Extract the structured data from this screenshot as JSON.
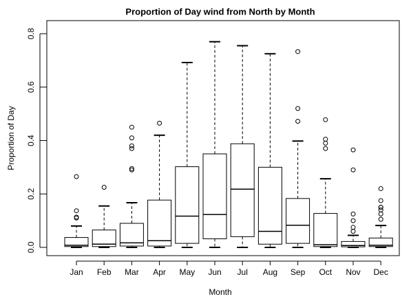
{
  "chart_data": {
    "type": "box",
    "title": "Proportion of Day wind from North by Month",
    "xlabel": "Month",
    "ylabel": "Proportion of Day",
    "categories": [
      "Jan",
      "Feb",
      "Mar",
      "Apr",
      "May",
      "Jun",
      "Jul",
      "Aug",
      "Sep",
      "Oct",
      "Nov",
      "Dec"
    ],
    "boxes": [
      {
        "low": 0,
        "q1": 0.003,
        "median": 0.008,
        "q3": 0.037,
        "high": 0.08,
        "outliers": [
          0.11,
          0.113,
          0.137,
          0.265
        ]
      },
      {
        "low": 0,
        "q1": 0.003,
        "median": 0.012,
        "q3": 0.065,
        "high": 0.155,
        "outliers": [
          0.225
        ]
      },
      {
        "low": 0,
        "q1": 0.005,
        "median": 0.017,
        "q3": 0.09,
        "high": 0.167,
        "outliers": [
          0.29,
          0.295,
          0.37,
          0.38,
          0.41,
          0.45
        ]
      },
      {
        "low": 0,
        "q1": 0.005,
        "median": 0.025,
        "q3": 0.177,
        "high": 0.42,
        "outliers": [
          0.465
        ]
      },
      {
        "low": 0,
        "q1": 0.015,
        "median": 0.117,
        "q3": 0.302,
        "high": 0.692,
        "outliers": []
      },
      {
        "low": 0,
        "q1": 0.032,
        "median": 0.123,
        "q3": 0.35,
        "high": 0.77,
        "outliers": []
      },
      {
        "low": 0,
        "q1": 0.04,
        "median": 0.218,
        "q3": 0.388,
        "high": 0.755,
        "outliers": []
      },
      {
        "low": 0,
        "q1": 0.012,
        "median": 0.06,
        "q3": 0.3,
        "high": 0.725,
        "outliers": []
      },
      {
        "low": 0,
        "q1": 0.015,
        "median": 0.083,
        "q3": 0.183,
        "high": 0.398,
        "outliers": [
          0.472,
          0.52,
          0.733
        ]
      },
      {
        "low": 0,
        "q1": 0.003,
        "median": 0.01,
        "q3": 0.127,
        "high": 0.257,
        "outliers": [
          0.37,
          0.39,
          0.405,
          0.478
        ]
      },
      {
        "low": 0,
        "q1": 0.002,
        "median": 0.007,
        "q3": 0.022,
        "high": 0.045,
        "outliers": [
          0.06,
          0.075,
          0.1,
          0.125,
          0.29,
          0.365
        ]
      },
      {
        "low": 0,
        "q1": 0.003,
        "median": 0.008,
        "q3": 0.035,
        "high": 0.082,
        "outliers": [
          0.105,
          0.125,
          0.14,
          0.15,
          0.15,
          0.175,
          0.22
        ]
      }
    ],
    "ylim": [
      -0.031,
      0.849
    ],
    "yticks": [
      {
        "value": 0,
        "label": "0.0"
      },
      0.2,
      0.4,
      0.6,
      0.8
    ]
  }
}
